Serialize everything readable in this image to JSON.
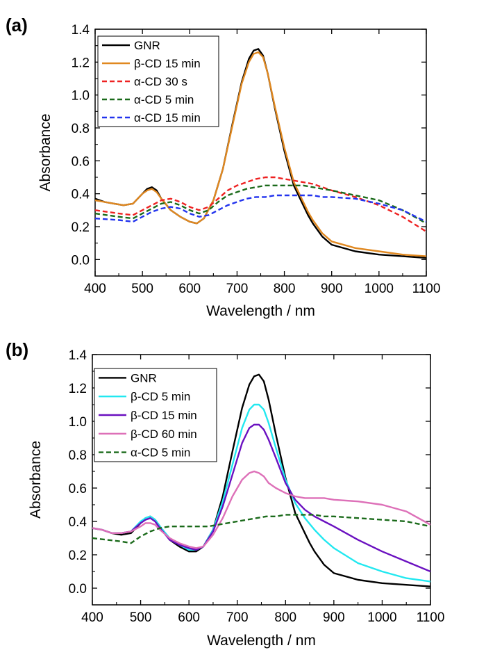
{
  "chart_data": [
    {
      "panel_label": "(a)",
      "type": "line",
      "xlabel": "Wavelength / nm",
      "ylabel": "Absorbance",
      "xlim": [
        400,
        1100
      ],
      "ylim": [
        -0.1,
        1.4
      ],
      "x_ticks": [
        400,
        500,
        600,
        700,
        800,
        900,
        1000,
        1100
      ],
      "y_ticks": [
        0.0,
        0.2,
        0.4,
        0.6,
        0.8,
        1.0,
        1.2,
        1.4
      ],
      "grid": false,
      "legend_position": "top-left",
      "series": [
        {
          "name": "GNR",
          "color": "#000000",
          "dash": "solid",
          "x": [
            400,
            420,
            440,
            460,
            480,
            500,
            510,
            520,
            530,
            540,
            560,
            580,
            600,
            615,
            630,
            650,
            670,
            690,
            710,
            725,
            735,
            745,
            755,
            765,
            780,
            800,
            820,
            840,
            850,
            860,
            880,
            900,
            950,
            1000,
            1050,
            1100
          ],
          "y": [
            0.37,
            0.35,
            0.34,
            0.33,
            0.34,
            0.4,
            0.43,
            0.44,
            0.42,
            0.37,
            0.3,
            0.26,
            0.23,
            0.22,
            0.25,
            0.36,
            0.55,
            0.82,
            1.08,
            1.22,
            1.27,
            1.28,
            1.24,
            1.13,
            0.92,
            0.66,
            0.45,
            0.33,
            0.27,
            0.22,
            0.14,
            0.09,
            0.05,
            0.03,
            0.02,
            0.01
          ]
        },
        {
          "name": "β-CD 15 min",
          "color": "#e08820",
          "dash": "solid",
          "x": [
            400,
            420,
            440,
            460,
            480,
            500,
            510,
            520,
            530,
            540,
            560,
            580,
            600,
            615,
            630,
            650,
            670,
            690,
            710,
            725,
            735,
            745,
            755,
            765,
            780,
            800,
            820,
            840,
            850,
            860,
            880,
            900,
            950,
            1000,
            1050,
            1100
          ],
          "y": [
            0.36,
            0.35,
            0.34,
            0.33,
            0.34,
            0.4,
            0.42,
            0.43,
            0.41,
            0.37,
            0.3,
            0.26,
            0.23,
            0.22,
            0.25,
            0.36,
            0.55,
            0.81,
            1.07,
            1.2,
            1.25,
            1.26,
            1.23,
            1.13,
            0.93,
            0.68,
            0.47,
            0.35,
            0.29,
            0.24,
            0.16,
            0.11,
            0.07,
            0.05,
            0.03,
            0.02
          ]
        },
        {
          "name": "α-CD 30 s",
          "color": "#ee2222",
          "dash": "dashed",
          "x": [
            400,
            450,
            480,
            500,
            520,
            540,
            560,
            580,
            600,
            620,
            640,
            660,
            680,
            700,
            720,
            740,
            760,
            780,
            800,
            820,
            840,
            860,
            880,
            900,
            950,
            1000,
            1050,
            1100
          ],
          "y": [
            0.3,
            0.28,
            0.27,
            0.3,
            0.33,
            0.36,
            0.37,
            0.35,
            0.32,
            0.3,
            0.32,
            0.37,
            0.42,
            0.45,
            0.47,
            0.49,
            0.5,
            0.5,
            0.49,
            0.48,
            0.47,
            0.46,
            0.44,
            0.42,
            0.38,
            0.33,
            0.26,
            0.17
          ]
        },
        {
          "name": "α-CD 5 min",
          "color": "#1a6a1a",
          "dash": "dashed",
          "x": [
            400,
            450,
            480,
            500,
            520,
            540,
            560,
            580,
            600,
            620,
            640,
            660,
            680,
            700,
            720,
            740,
            760,
            780,
            800,
            820,
            840,
            860,
            880,
            900,
            950,
            1000,
            1050,
            1100
          ],
          "y": [
            0.28,
            0.26,
            0.25,
            0.28,
            0.31,
            0.34,
            0.35,
            0.33,
            0.3,
            0.28,
            0.3,
            0.35,
            0.39,
            0.41,
            0.43,
            0.44,
            0.45,
            0.45,
            0.45,
            0.45,
            0.45,
            0.44,
            0.43,
            0.42,
            0.39,
            0.36,
            0.3,
            0.22
          ]
        },
        {
          "name": "α-CD 15 min",
          "color": "#2233ee",
          "dash": "dashed",
          "x": [
            400,
            450,
            480,
            500,
            520,
            540,
            560,
            580,
            600,
            620,
            640,
            660,
            680,
            700,
            720,
            740,
            760,
            780,
            800,
            820,
            840,
            860,
            880,
            900,
            950,
            1000,
            1050,
            1100
          ],
          "y": [
            0.25,
            0.24,
            0.23,
            0.26,
            0.29,
            0.31,
            0.32,
            0.31,
            0.28,
            0.26,
            0.27,
            0.3,
            0.33,
            0.35,
            0.37,
            0.38,
            0.38,
            0.39,
            0.39,
            0.39,
            0.39,
            0.39,
            0.38,
            0.38,
            0.37,
            0.34,
            0.3,
            0.23
          ]
        }
      ]
    },
    {
      "panel_label": "(b)",
      "type": "line",
      "xlabel": "Wavelength / nm",
      "ylabel": "Absorbance",
      "xlim": [
        400,
        1100
      ],
      "ylim": [
        -0.1,
        1.4
      ],
      "x_ticks": [
        400,
        500,
        600,
        700,
        800,
        900,
        1000,
        1100
      ],
      "y_ticks": [
        0.0,
        0.2,
        0.4,
        0.6,
        0.8,
        1.0,
        1.2,
        1.4
      ],
      "grid": false,
      "legend_position": "top-left",
      "series": [
        {
          "name": "GNR",
          "color": "#000000",
          "dash": "solid",
          "x": [
            400,
            420,
            440,
            460,
            480,
            500,
            510,
            520,
            530,
            540,
            560,
            580,
            600,
            615,
            630,
            650,
            670,
            690,
            710,
            725,
            735,
            745,
            755,
            765,
            780,
            800,
            820,
            840,
            850,
            860,
            880,
            900,
            950,
            1000,
            1050,
            1100
          ],
          "y": [
            0.36,
            0.35,
            0.33,
            0.32,
            0.33,
            0.39,
            0.42,
            0.43,
            0.41,
            0.37,
            0.29,
            0.25,
            0.22,
            0.22,
            0.25,
            0.35,
            0.55,
            0.82,
            1.08,
            1.22,
            1.27,
            1.28,
            1.24,
            1.13,
            0.92,
            0.66,
            0.45,
            0.33,
            0.27,
            0.22,
            0.14,
            0.09,
            0.05,
            0.03,
            0.02,
            0.01
          ]
        },
        {
          "name": "β-CD 5 min",
          "color": "#22e8f0",
          "dash": "solid",
          "x": [
            400,
            420,
            440,
            460,
            480,
            500,
            510,
            520,
            530,
            540,
            560,
            580,
            600,
            615,
            630,
            650,
            670,
            690,
            710,
            725,
            735,
            745,
            755,
            765,
            780,
            800,
            820,
            840,
            860,
            880,
            900,
            950,
            1000,
            1050,
            1100
          ],
          "y": [
            0.36,
            0.35,
            0.33,
            0.33,
            0.34,
            0.4,
            0.42,
            0.43,
            0.41,
            0.37,
            0.3,
            0.26,
            0.23,
            0.23,
            0.25,
            0.35,
            0.52,
            0.74,
            0.96,
            1.07,
            1.1,
            1.1,
            1.07,
            0.99,
            0.84,
            0.65,
            0.51,
            0.42,
            0.35,
            0.29,
            0.24,
            0.15,
            0.1,
            0.06,
            0.04
          ]
        },
        {
          "name": "β-CD 15 min",
          "color": "#6a10c0",
          "dash": "solid",
          "x": [
            400,
            420,
            440,
            460,
            480,
            500,
            510,
            520,
            530,
            540,
            560,
            580,
            600,
            615,
            630,
            650,
            670,
            690,
            710,
            725,
            735,
            745,
            755,
            765,
            780,
            800,
            820,
            840,
            860,
            880,
            900,
            950,
            1000,
            1050,
            1100
          ],
          "y": [
            0.36,
            0.35,
            0.33,
            0.33,
            0.34,
            0.39,
            0.41,
            0.42,
            0.4,
            0.36,
            0.29,
            0.26,
            0.24,
            0.23,
            0.25,
            0.34,
            0.49,
            0.68,
            0.87,
            0.96,
            0.98,
            0.98,
            0.95,
            0.89,
            0.78,
            0.63,
            0.53,
            0.47,
            0.43,
            0.4,
            0.37,
            0.29,
            0.22,
            0.16,
            0.1
          ]
        },
        {
          "name": "β-CD 60 min",
          "color": "#dd70b8",
          "dash": "solid",
          "x": [
            400,
            420,
            440,
            460,
            480,
            500,
            510,
            520,
            530,
            540,
            560,
            580,
            600,
            615,
            630,
            650,
            670,
            690,
            710,
            725,
            735,
            745,
            755,
            765,
            780,
            800,
            820,
            840,
            860,
            880,
            900,
            950,
            1000,
            1050,
            1100
          ],
          "y": [
            0.36,
            0.35,
            0.33,
            0.33,
            0.34,
            0.37,
            0.39,
            0.39,
            0.38,
            0.35,
            0.3,
            0.27,
            0.25,
            0.24,
            0.25,
            0.32,
            0.42,
            0.55,
            0.65,
            0.69,
            0.7,
            0.69,
            0.67,
            0.63,
            0.6,
            0.57,
            0.55,
            0.54,
            0.54,
            0.54,
            0.53,
            0.52,
            0.5,
            0.46,
            0.38
          ]
        },
        {
          "name": "α-CD 5 min",
          "color": "#1a6a1a",
          "dash": "dashed",
          "x": [
            400,
            430,
            460,
            480,
            500,
            520,
            540,
            560,
            580,
            600,
            620,
            640,
            660,
            680,
            700,
            720,
            740,
            760,
            780,
            800,
            820,
            840,
            860,
            880,
            900,
            950,
            1000,
            1050,
            1100
          ],
          "y": [
            0.3,
            0.29,
            0.28,
            0.27,
            0.31,
            0.34,
            0.36,
            0.37,
            0.37,
            0.37,
            0.37,
            0.37,
            0.38,
            0.39,
            0.4,
            0.41,
            0.42,
            0.43,
            0.43,
            0.44,
            0.44,
            0.44,
            0.44,
            0.43,
            0.43,
            0.42,
            0.41,
            0.4,
            0.37
          ]
        }
      ]
    }
  ]
}
